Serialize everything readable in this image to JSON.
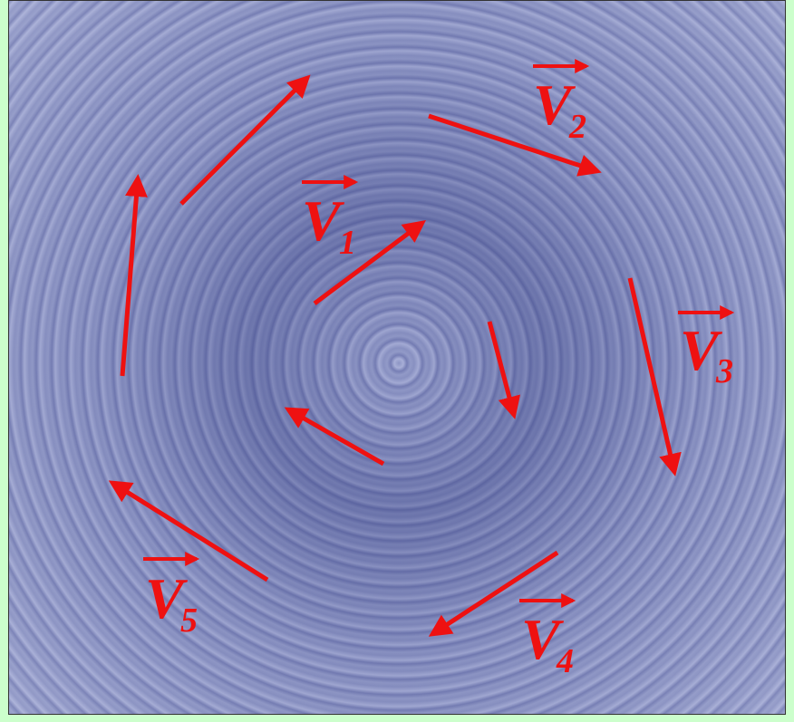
{
  "labels": [
    {
      "letter": "V",
      "subscript": "1"
    },
    {
      "letter": "V",
      "subscript": "2"
    },
    {
      "letter": "V",
      "subscript": "3"
    },
    {
      "letter": "V",
      "subscript": "4"
    },
    {
      "letter": "V",
      "subscript": "5"
    }
  ]
}
